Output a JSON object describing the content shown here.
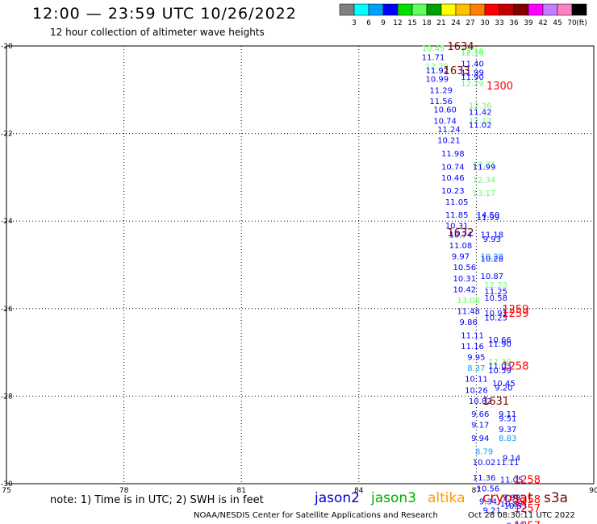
{
  "header": {
    "title": "12:00 — 23:59 UTC 10/26/2022",
    "subtitle": "12 hour collection of altimeter wave heights"
  },
  "scale": {
    "colors": [
      "#808080",
      "#00ffff",
      "#00a0ff",
      "#0000ff",
      "#00e000",
      "#60ff60",
      "#00a000",
      "#ffff00",
      "#ffc000",
      "#ff8000",
      "#ff0000",
      "#c00000",
      "#800000",
      "#ff00ff",
      "#c080ff",
      "#ff80c0",
      "#000000"
    ],
    "labels": [
      "3",
      "6",
      "9",
      "12",
      "15",
      "18",
      "21",
      "24",
      "27",
      "30",
      "33",
      "36",
      "39",
      "42",
      "45",
      "70"
    ],
    "unit": "(ft)"
  },
  "legend": [
    {
      "label": "jason2",
      "color": "#0000cc"
    },
    {
      "label": "jason3",
      "color": "#00aa00"
    },
    {
      "label": "altika",
      "color": "#ff9900"
    },
    {
      "label": "cryosat",
      "color": "#cc0000"
    },
    {
      "label": "s3a",
      "color": "#800000"
    }
  ],
  "footer": {
    "note": "note: 1) Time is in UTC; 2) SWH is in feet",
    "credit": "NOAA/NESDIS Center for Satellite Applications and Research",
    "timestamp": "Oct 28 08:30:11 UTC 2022"
  },
  "chart_data": {
    "type": "scatter",
    "xlim": [
      75,
      90
    ],
    "ylim": [
      -30,
      -20
    ],
    "xticks": [
      "75",
      "78",
      "81",
      "84",
      "87",
      "90"
    ],
    "yticks": [
      "-20",
      "-22",
      "-24",
      "-26",
      "-28",
      "-30"
    ],
    "grid": true,
    "swh_points": [
      {
        "x": 85.9,
        "y": -20.05,
        "v": "10.45",
        "color": "#60ff60"
      },
      {
        "x": 86.9,
        "y": -20.1,
        "v": "12.16",
        "color": "#60ff60"
      },
      {
        "x": 86.9,
        "y": -20.15,
        "v": "12.36",
        "color": "#60ff60"
      },
      {
        "x": 85.9,
        "y": -20.25,
        "v": "11.71",
        "color": "#0000ff"
      },
      {
        "x": 86.9,
        "y": -20.4,
        "v": "11.40",
        "color": "#0000ff"
      },
      {
        "x": 86.0,
        "y": -20.45,
        "v": "12.29",
        "color": "#60ff60"
      },
      {
        "x": 86.0,
        "y": -20.55,
        "v": "11.92",
        "color": "#0000ff"
      },
      {
        "x": 86.9,
        "y": -20.6,
        "v": "11.99",
        "color": "#0000ff"
      },
      {
        "x": 86.9,
        "y": -20.7,
        "v": "11.90",
        "color": "#0000ff"
      },
      {
        "x": 86.0,
        "y": -20.75,
        "v": "10.99",
        "color": "#0000ff"
      },
      {
        "x": 86.9,
        "y": -20.85,
        "v": "12.29",
        "color": "#60ff60"
      },
      {
        "x": 86.1,
        "y": -21.0,
        "v": "11.29",
        "color": "#0000ff"
      },
      {
        "x": 86.1,
        "y": -21.25,
        "v": "11.56",
        "color": "#0000ff"
      },
      {
        "x": 87.1,
        "y": -21.35,
        "v": "12.36",
        "color": "#60ff60"
      },
      {
        "x": 86.2,
        "y": -21.45,
        "v": "10.60",
        "color": "#0000ff"
      },
      {
        "x": 87.1,
        "y": -21.5,
        "v": "11.42",
        "color": "#0000ff"
      },
      {
        "x": 86.2,
        "y": -21.7,
        "v": "10.74",
        "color": "#0000ff"
      },
      {
        "x": 87.1,
        "y": -21.7,
        "v": "12.17",
        "color": "#60ff60"
      },
      {
        "x": 87.1,
        "y": -21.8,
        "v": "11.02",
        "color": "#0000ff"
      },
      {
        "x": 86.3,
        "y": -21.9,
        "v": "11.24",
        "color": "#0000ff"
      },
      {
        "x": 86.3,
        "y": -22.15,
        "v": "10.21",
        "color": "#0000ff"
      },
      {
        "x": 86.4,
        "y": -22.45,
        "v": "11.98",
        "color": "#0000ff"
      },
      {
        "x": 87.2,
        "y": -22.7,
        "v": "12.71",
        "color": "#60ff60"
      },
      {
        "x": 86.4,
        "y": -22.75,
        "v": "10.74",
        "color": "#0000ff"
      },
      {
        "x": 87.2,
        "y": -22.75,
        "v": "11.99",
        "color": "#0000ff"
      },
      {
        "x": 86.4,
        "y": -23.0,
        "v": "10.46",
        "color": "#0000ff"
      },
      {
        "x": 87.2,
        "y": -23.05,
        "v": "12.34",
        "color": "#60ff60"
      },
      {
        "x": 86.4,
        "y": -23.3,
        "v": "10.23",
        "color": "#0000ff"
      },
      {
        "x": 87.2,
        "y": -23.35,
        "v": "13.17",
        "color": "#60ff60"
      },
      {
        "x": 86.5,
        "y": -23.55,
        "v": "11.05",
        "color": "#0000ff"
      },
      {
        "x": 86.5,
        "y": -23.85,
        "v": "11.85",
        "color": "#0000ff"
      },
      {
        "x": 87.3,
        "y": -23.85,
        "v": "14.50",
        "color": "#0000ff"
      },
      {
        "x": 87.3,
        "y": -23.9,
        "v": "11.99",
        "color": "#0000ff"
      },
      {
        "x": 86.5,
        "y": -24.1,
        "v": "10.31",
        "color": "#0000ff"
      },
      {
        "x": 86.6,
        "y": -24.3,
        "v": "10.74",
        "color": "#0000ff"
      },
      {
        "x": 87.4,
        "y": -24.3,
        "v": "11.18",
        "color": "#0000ff"
      },
      {
        "x": 87.4,
        "y": -24.4,
        "v": "9.93",
        "color": "#0000ff"
      },
      {
        "x": 86.6,
        "y": -24.55,
        "v": "11.08",
        "color": "#0000ff"
      },
      {
        "x": 87.4,
        "y": -24.8,
        "v": "10.28",
        "color": "#00a0ff"
      },
      {
        "x": 87.4,
        "y": -24.85,
        "v": "10.28",
        "color": "#0000ff"
      },
      {
        "x": 86.6,
        "y": -24.8,
        "v": "9.97",
        "color": "#0000ff"
      },
      {
        "x": 86.7,
        "y": -25.05,
        "v": "10.56",
        "color": "#0000ff"
      },
      {
        "x": 87.4,
        "y": -25.25,
        "v": "10.87",
        "color": "#0000ff"
      },
      {
        "x": 86.7,
        "y": -25.3,
        "v": "10.31",
        "color": "#0000ff"
      },
      {
        "x": 87.5,
        "y": -25.45,
        "v": "12.23",
        "color": "#60ff60"
      },
      {
        "x": 86.7,
        "y": -25.55,
        "v": "10.42",
        "color": "#0000ff"
      },
      {
        "x": 87.5,
        "y": -25.6,
        "v": "11.25",
        "color": "#0000ff"
      },
      {
        "x": 87.5,
        "y": -25.75,
        "v": "10.58",
        "color": "#0000ff"
      },
      {
        "x": 86.8,
        "y": -25.8,
        "v": "13.08",
        "color": "#60ff60"
      },
      {
        "x": 86.8,
        "y": -26.05,
        "v": "11.48",
        "color": "#0000ff"
      },
      {
        "x": 87.5,
        "y": -26.1,
        "v": "10.91",
        "color": "#0000ff"
      },
      {
        "x": 87.5,
        "y": -26.2,
        "v": "10.25",
        "color": "#0000ff"
      },
      {
        "x": 86.8,
        "y": -26.3,
        "v": "9.86",
        "color": "#0000ff"
      },
      {
        "x": 86.9,
        "y": -26.6,
        "v": "11.11",
        "color": "#0000ff"
      },
      {
        "x": 87.6,
        "y": -26.7,
        "v": "10.66",
        "color": "#0000ff"
      },
      {
        "x": 87.6,
        "y": -26.8,
        "v": "11.90",
        "color": "#0000ff"
      },
      {
        "x": 86.9,
        "y": -26.85,
        "v": "11.16",
        "color": "#0000ff"
      },
      {
        "x": 87.0,
        "y": -27.1,
        "v": "9.95",
        "color": "#0000ff"
      },
      {
        "x": 87.6,
        "y": -27.2,
        "v": "12.39",
        "color": "#60ff60"
      },
      {
        "x": 87.6,
        "y": -27.3,
        "v": "11.03",
        "color": "#0000ff"
      },
      {
        "x": 87.0,
        "y": -27.35,
        "v": "8.37",
        "color": "#00a0ff"
      },
      {
        "x": 87.6,
        "y": -27.4,
        "v": "10.59",
        "color": "#0000ff"
      },
      {
        "x": 87.0,
        "y": -27.6,
        "v": "10.11",
        "color": "#0000ff"
      },
      {
        "x": 87.7,
        "y": -27.7,
        "v": "10.45",
        "color": "#0000ff"
      },
      {
        "x": 87.7,
        "y": -27.8,
        "v": "9.20",
        "color": "#0000ff"
      },
      {
        "x": 87.0,
        "y": -27.85,
        "v": "10.26",
        "color": "#0000ff"
      },
      {
        "x": 87.1,
        "y": -28.1,
        "v": "10.82",
        "color": "#0000ff"
      },
      {
        "x": 87.1,
        "y": -28.4,
        "v": "9.66",
        "color": "#0000ff"
      },
      {
        "x": 87.8,
        "y": -28.4,
        "v": "9.11",
        "color": "#0000ff"
      },
      {
        "x": 87.8,
        "y": -28.5,
        "v": "9.51",
        "color": "#0000ff"
      },
      {
        "x": 87.1,
        "y": -28.65,
        "v": "9.17",
        "color": "#0000ff"
      },
      {
        "x": 87.8,
        "y": -28.75,
        "v": "9.37",
        "color": "#0000ff"
      },
      {
        "x": 87.1,
        "y": -28.95,
        "v": "9.94",
        "color": "#0000ff"
      },
      {
        "x": 87.8,
        "y": -28.95,
        "v": "8.83",
        "color": "#00a0ff"
      },
      {
        "x": 87.2,
        "y": -29.25,
        "v": "8.79",
        "color": "#00a0ff"
      },
      {
        "x": 87.9,
        "y": -29.4,
        "v": "9.14",
        "color": "#0000ff"
      },
      {
        "x": 87.2,
        "y": -29.5,
        "v": "10.02",
        "color": "#0000ff"
      },
      {
        "x": 87.8,
        "y": -29.5,
        "v": "11.11",
        "color": "#0000ff"
      },
      {
        "x": 87.2,
        "y": -29.85,
        "v": "11.36",
        "color": "#0000ff"
      },
      {
        "x": 87.9,
        "y": -29.9,
        "v": "11.05",
        "color": "#0000ff"
      },
      {
        "x": 87.3,
        "y": -30.1,
        "v": "10.56",
        "color": "#0000ff"
      },
      {
        "x": 87.9,
        "y": -30.3,
        "v": "9.99",
        "color": "#0000ff"
      },
      {
        "x": 87.3,
        "y": -30.4,
        "v": "9.34",
        "color": "#0000ff"
      },
      {
        "x": 87.9,
        "y": -30.45,
        "v": "10.82",
        "color": "#0000ff"
      },
      {
        "x": 88.0,
        "y": -30.5,
        "v": "10.53",
        "color": "#0000ff"
      },
      {
        "x": 87.4,
        "y": -30.6,
        "v": "9.21",
        "color": "#0000ff"
      },
      {
        "x": 88.0,
        "y": -30.95,
        "v": "9.93",
        "color": "#0000ff"
      }
    ],
    "pass_labels": [
      {
        "x": 86.6,
        "y": -20.0,
        "v": "1634",
        "color": "#800000"
      },
      {
        "x": 86.5,
        "y": -20.55,
        "v": "1633",
        "color": "#800000"
      },
      {
        "x": 87.6,
        "y": -20.9,
        "v": "1300",
        "color": "#ff0000"
      },
      {
        "x": 86.6,
        "y": -24.25,
        "v": "1632",
        "color": "#800000"
      },
      {
        "x": 88.0,
        "y": -26.0,
        "v": "1259",
        "color": "#ff0000"
      },
      {
        "x": 88.0,
        "y": -26.1,
        "v": "1259",
        "color": "#ff0000"
      },
      {
        "x": 88.0,
        "y": -27.3,
        "v": "1258",
        "color": "#ff0000"
      },
      {
        "x": 87.5,
        "y": -28.1,
        "v": "1631",
        "color": "#800000"
      },
      {
        "x": 88.3,
        "y": -29.9,
        "v": "1258",
        "color": "#ff0000"
      },
      {
        "x": 88.3,
        "y": -30.35,
        "v": "1258",
        "color": "#ff0000"
      },
      {
        "x": 88.3,
        "y": -30.55,
        "v": "1257",
        "color": "#ff0000"
      },
      {
        "x": 88.3,
        "y": -30.95,
        "v": "1257",
        "color": "#ff0000"
      }
    ]
  }
}
